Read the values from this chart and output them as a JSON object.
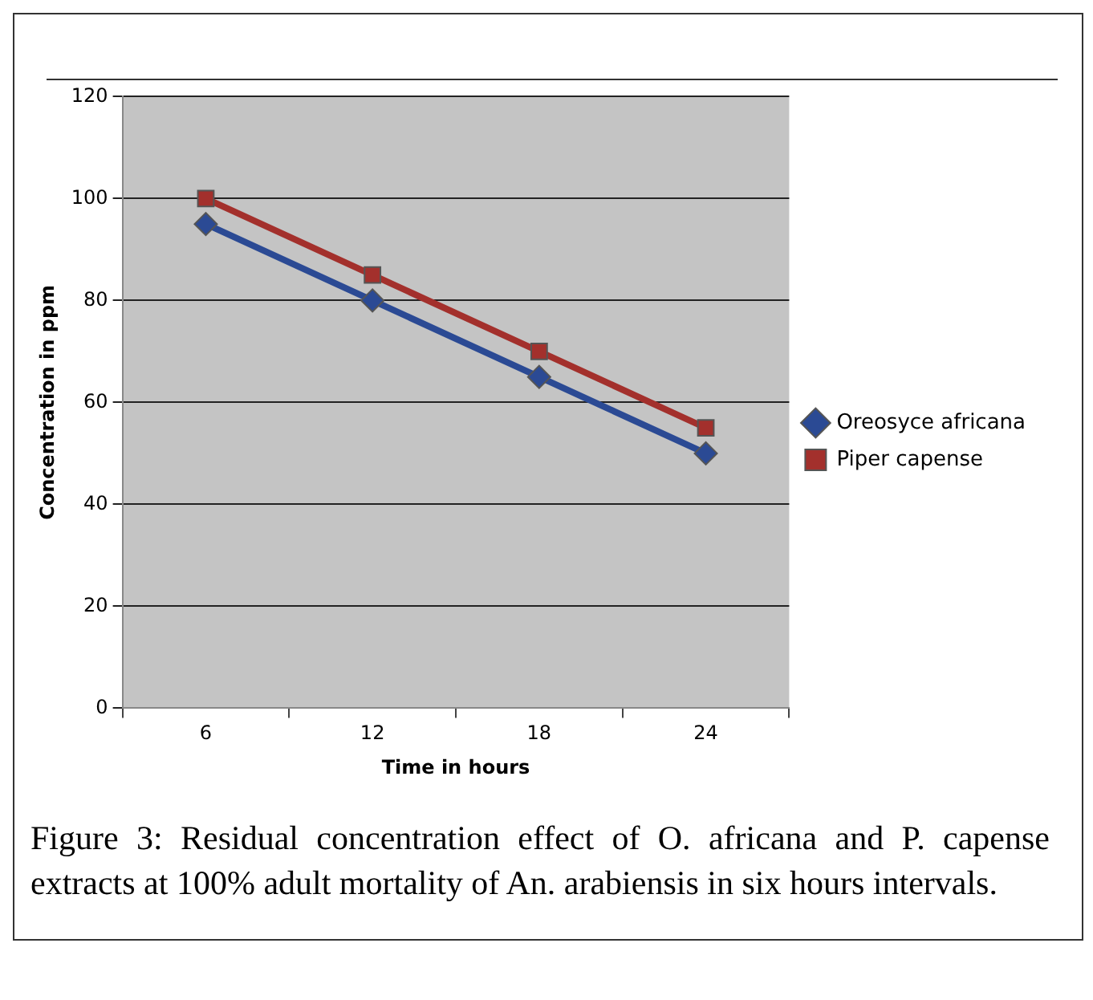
{
  "chart_data": {
    "type": "line",
    "xlabel": "Time in hours",
    "ylabel": "Concentration in ppm",
    "categories": [
      "6",
      "12",
      "18",
      "24"
    ],
    "series": [
      {
        "name": "Oreosyce africana",
        "color": "#2b4a94",
        "values": [
          95,
          80,
          65,
          50
        ],
        "marker": "diamond"
      },
      {
        "name": "Piper capense",
        "color": "#a3302c",
        "values": [
          100,
          85,
          70,
          55
        ],
        "marker": "square"
      }
    ],
    "ylim": [
      0,
      120
    ],
    "yticks": [
      0,
      20,
      40,
      60,
      80,
      100,
      120
    ],
    "grid": "y",
    "legend": "right",
    "line_style": "solid",
    "annotations": [
      "Figure 3: Residual concentration effect of O. africana and P. capense extracts at 100% adult mortality of An. arabiensis in six hours intervals."
    ]
  }
}
